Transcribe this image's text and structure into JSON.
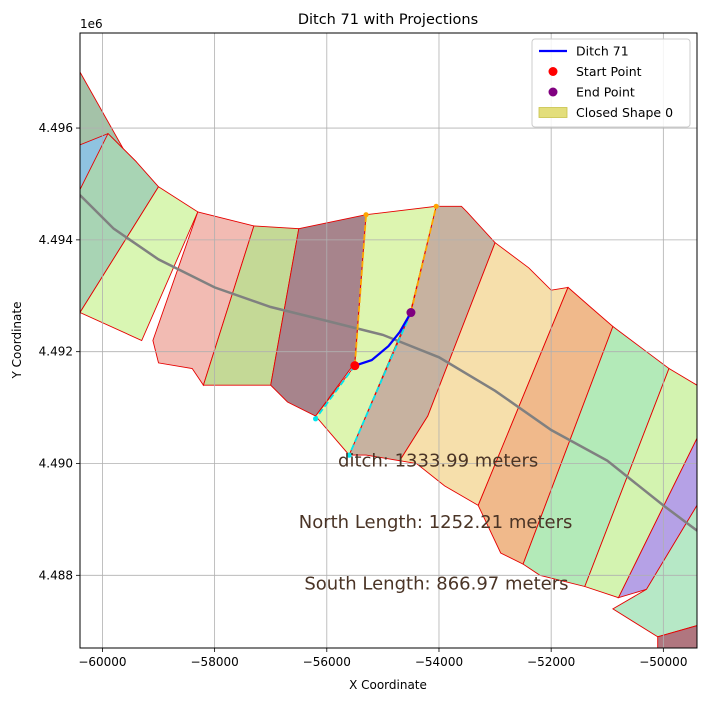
{
  "chart_data": {
    "type": "scatter",
    "title": "Ditch 71 with Projections",
    "xlabel": "X Coordinate",
    "ylabel": "Y Coordinate",
    "y_offset_text": "1e6",
    "xlim": [
      -60400,
      -49400
    ],
    "ylim": [
      4486700,
      4497700
    ],
    "xticks": [
      -60000,
      -58000,
      -56000,
      -54000,
      -52000,
      -50000
    ],
    "xtick_labels": [
      "−60000",
      "−58000",
      "−56000",
      "−54000",
      "−52000",
      "−50000"
    ],
    "yticks": [
      4488000,
      4490000,
      4492000,
      4494000,
      4496000
    ],
    "ytick_labels": [
      "4.488",
      "4.490",
      "4.492",
      "4.494",
      "4.496"
    ],
    "grid": true,
    "legend_position": "upper-right",
    "legend": [
      {
        "label": "Ditch 71",
        "kind": "line",
        "color": "#0000ff"
      },
      {
        "label": "Start Point",
        "kind": "marker",
        "color": "#ff0000"
      },
      {
        "label": "End Point",
        "kind": "marker",
        "color": "#800080"
      },
      {
        "label": "Closed Shape 0",
        "kind": "patch",
        "color": "#e3de7b"
      }
    ],
    "annotations": [
      {
        "text": "ditch: 1333.99 meters",
        "x": -55800,
        "y": 4489950
      },
      {
        "text": "North Length: 1252.21 meters",
        "x": -56500,
        "y": 4488850
      },
      {
        "text": "South Length: 866.97 meters",
        "x": -56400,
        "y": 4487750
      }
    ],
    "ditch": [
      [
        -55500,
        4491750
      ],
      [
        -55200,
        4491850
      ],
      [
        -54900,
        4492100
      ],
      [
        -54700,
        4492350
      ],
      [
        -54500,
        4492700
      ]
    ],
    "start_point": [
      -55500,
      4491750
    ],
    "end_point": [
      -54500,
      4492700
    ],
    "north_projections": [
      {
        "color": "#ffa500",
        "points": [
          [
            -55500,
            4491750
          ],
          [
            -55300,
            4494450
          ]
        ]
      },
      {
        "color": "#ffa500",
        "points": [
          [
            -54500,
            4492700
          ],
          [
            -54050,
            4494600
          ]
        ]
      }
    ],
    "south_projections": [
      {
        "color": "#00e5ee",
        "points": [
          [
            -55500,
            4491750
          ],
          [
            -56200,
            4490800
          ]
        ]
      },
      {
        "color": "#00e5ee",
        "points": [
          [
            -54500,
            4492700
          ],
          [
            -55600,
            4490150
          ]
        ]
      }
    ],
    "centerline": {
      "color": "#808080",
      "points": [
        [
          -60400,
          4494800
        ],
        [
          -59800,
          4494200
        ],
        [
          -59000,
          4493650
        ],
        [
          -58000,
          4493150
        ],
        [
          -57000,
          4492800
        ],
        [
          -56000,
          4492550
        ],
        [
          -55000,
          4492300
        ],
        [
          -54000,
          4491900
        ],
        [
          -53000,
          4491300
        ],
        [
          -52000,
          4490600
        ],
        [
          -51000,
          4490050
        ],
        [
          -50000,
          4489250
        ],
        [
          -49400,
          4488800
        ]
      ]
    },
    "parcels": [
      {
        "color": "#a4c2a8",
        "points": [
          [
            -60400,
            4497000
          ],
          [
            -60400,
            4495700
          ],
          [
            -59900,
            4495700
          ],
          [
            -59500,
            4495400
          ],
          [
            -60400,
            4497000
          ]
        ]
      },
      {
        "color": "#8fc3e0",
        "points": [
          [
            -60400,
            4495700
          ],
          [
            -59900,
            4495900
          ],
          [
            -59400,
            4495400
          ],
          [
            -60000,
            4494500
          ],
          [
            -60400,
            4494900
          ]
        ]
      },
      {
        "color": "#a8d4b4",
        "points": [
          [
            -60400,
            4494900
          ],
          [
            -59900,
            4495900
          ],
          [
            -59400,
            4495400
          ],
          [
            -59000,
            4494950
          ],
          [
            -60400,
            4492700
          ]
        ]
      },
      {
        "color": "#d9f6b3",
        "points": [
          [
            -59000,
            4494950
          ],
          [
            -58300,
            4494500
          ],
          [
            -59300,
            4492200
          ],
          [
            -60400,
            4492700
          ]
        ]
      },
      {
        "color": "#f2bbb3",
        "points": [
          [
            -58300,
            4494500
          ],
          [
            -57300,
            4494250
          ],
          [
            -58200,
            4491400
          ],
          [
            -58400,
            4491700
          ],
          [
            -59000,
            4491800
          ],
          [
            -59100,
            4492200
          ]
        ]
      },
      {
        "color": "#c4d996",
        "points": [
          [
            -57300,
            4494250
          ],
          [
            -56500,
            4494200
          ],
          [
            -57000,
            4491400
          ],
          [
            -58200,
            4491400
          ]
        ]
      },
      {
        "color": "#a7848c",
        "points": [
          [
            -56500,
            4494200
          ],
          [
            -55300,
            4494450
          ],
          [
            -55500,
            4491800
          ],
          [
            -56200,
            4490850
          ],
          [
            -56700,
            4491100
          ],
          [
            -57000,
            4491400
          ]
        ]
      },
      {
        "color": "#ddf5b0",
        "points": [
          [
            -55300,
            4494450
          ],
          [
            -54050,
            4494600
          ],
          [
            -54500,
            4492750
          ],
          [
            -55600,
            4490150
          ],
          [
            -56200,
            4490850
          ],
          [
            -55500,
            4491750
          ]
        ]
      },
      {
        "color": "#c7b2a0",
        "points": [
          [
            -54050,
            4494600
          ],
          [
            -53600,
            4494600
          ],
          [
            -53500,
            4494500
          ],
          [
            -53000,
            4493950
          ],
          [
            -54200,
            4490850
          ],
          [
            -54700,
            4490050
          ],
          [
            -55300,
            4490150
          ],
          [
            -55600,
            4490150
          ],
          [
            -54500,
            4492700
          ]
        ]
      },
      {
        "color": "#f6dfab",
        "points": [
          [
            -53000,
            4493950
          ],
          [
            -52400,
            4493500
          ],
          [
            -52000,
            4493100
          ],
          [
            -51700,
            4493150
          ],
          [
            -53300,
            4489250
          ],
          [
            -53900,
            4489600
          ],
          [
            -54400,
            4490000
          ],
          [
            -54700,
            4490050
          ],
          [
            -54200,
            4490850
          ]
        ]
      },
      {
        "color": "#f0b98b",
        "points": [
          [
            -51700,
            4493150
          ],
          [
            -51300,
            4492800
          ],
          [
            -50900,
            4492450
          ],
          [
            -52500,
            4488200
          ],
          [
            -52900,
            4488400
          ],
          [
            -53300,
            4489250
          ]
        ]
      },
      {
        "color": "#b3eab8",
        "points": [
          [
            -50900,
            4492450
          ],
          [
            -50300,
            4492000
          ],
          [
            -49900,
            4491700
          ],
          [
            -51400,
            4487800
          ],
          [
            -52200,
            4488000
          ],
          [
            -52500,
            4488200
          ]
        ]
      },
      {
        "color": "#d3f3b0",
        "points": [
          [
            -49900,
            4491700
          ],
          [
            -49400,
            4491400
          ],
          [
            -49400,
            4490450
          ],
          [
            -50800,
            4487600
          ],
          [
            -51400,
            4487800
          ]
        ]
      },
      {
        "color": "#b5a1e6",
        "points": [
          [
            -49400,
            4490450
          ],
          [
            -49400,
            4489250
          ],
          [
            -50300,
            4487750
          ],
          [
            -50800,
            4487600
          ]
        ]
      },
      {
        "color": "#b6e8c6",
        "points": [
          [
            -49400,
            4489250
          ],
          [
            -49400,
            4487100
          ],
          [
            -50100,
            4486900
          ],
          [
            -50900,
            4487400
          ],
          [
            -50300,
            4487750
          ]
        ]
      },
      {
        "color": "#b0767f",
        "points": [
          [
            -49400,
            4487100
          ],
          [
            -49400,
            4486700
          ],
          [
            -50100,
            4486700
          ],
          [
            -50100,
            4486900
          ]
        ]
      }
    ]
  }
}
